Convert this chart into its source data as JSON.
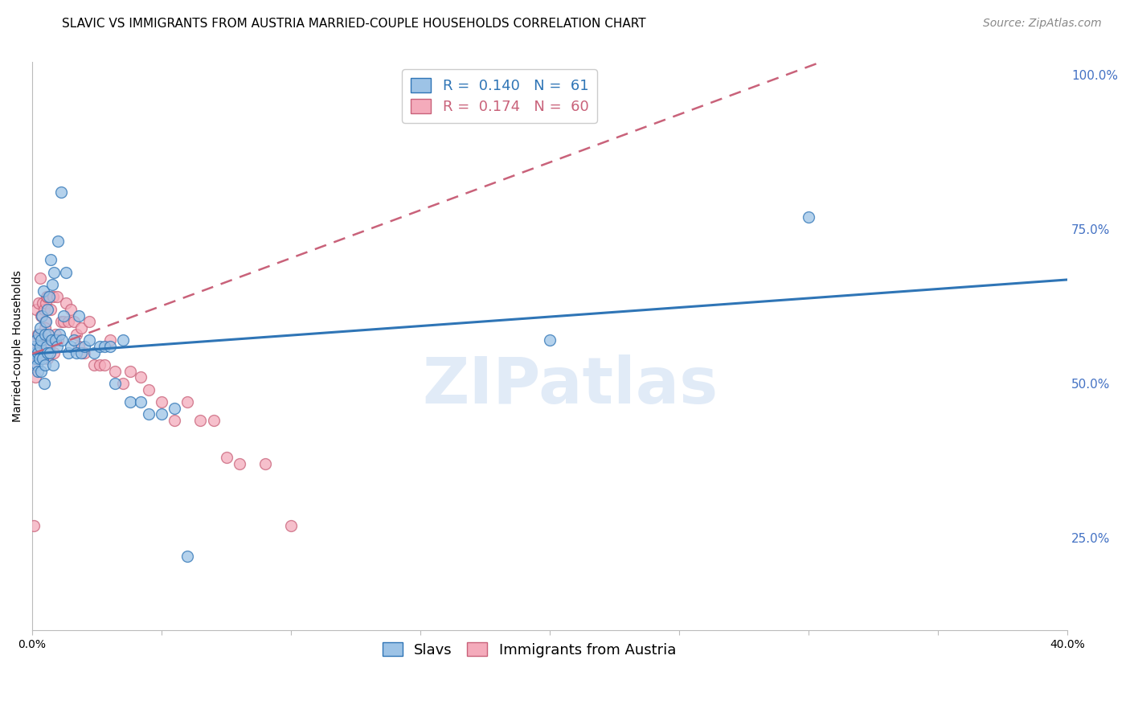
{
  "title": "SLAVIC VS IMMIGRANTS FROM AUSTRIA MARRIED-COUPLE HOUSEHOLDS CORRELATION CHART",
  "source": "Source: ZipAtlas.com",
  "ylabel": "Married-couple Households",
  "xlabel": "",
  "xlim": [
    0.0,
    0.4
  ],
  "ylim": [
    0.1,
    1.02
  ],
  "xticks": [
    0.0,
    0.05,
    0.1,
    0.15,
    0.2,
    0.25,
    0.3,
    0.35,
    0.4
  ],
  "xticklabels": [
    "0.0%",
    "",
    "",
    "",
    "",
    "",
    "",
    "",
    "40.0%"
  ],
  "yticks_right": [
    0.25,
    0.5,
    0.75,
    1.0
  ],
  "ytick_labels_right": [
    "25.0%",
    "50.0%",
    "75.0%",
    "100.0%"
  ],
  "background_color": "#ffffff",
  "grid_color": "#cccccc",
  "blue_color": "#9DC3E6",
  "pink_color": "#F4ABBB",
  "blue_line_color": "#2F75B6",
  "pink_line_color": "#C9627A",
  "R_blue": 0.14,
  "N_blue": 61,
  "R_pink": 0.174,
  "N_pink": 60,
  "legend_label_blue": "Slavs",
  "legend_label_pink": "Immigrants from Austria",
  "blue_intercept": 0.548,
  "blue_slope": 0.3,
  "pink_intercept": 0.548,
  "pink_slope": 1.55,
  "slavs_x": [
    0.0008,
    0.001,
    0.0012,
    0.0015,
    0.0018,
    0.002,
    0.0022,
    0.0025,
    0.0028,
    0.003,
    0.003,
    0.0033,
    0.0035,
    0.0038,
    0.004,
    0.0042,
    0.0045,
    0.0048,
    0.005,
    0.0052,
    0.0055,
    0.0058,
    0.006,
    0.0062,
    0.0065,
    0.0068,
    0.007,
    0.0075,
    0.0078,
    0.008,
    0.0085,
    0.009,
    0.0095,
    0.01,
    0.0105,
    0.011,
    0.0115,
    0.012,
    0.013,
    0.014,
    0.015,
    0.016,
    0.017,
    0.018,
    0.019,
    0.02,
    0.022,
    0.024,
    0.026,
    0.028,
    0.03,
    0.032,
    0.035,
    0.038,
    0.042,
    0.045,
    0.05,
    0.055,
    0.06,
    0.2,
    0.3
  ],
  "slavs_y": [
    0.55,
    0.56,
    0.54,
    0.57,
    0.53,
    0.55,
    0.52,
    0.58,
    0.54,
    0.56,
    0.59,
    0.52,
    0.57,
    0.61,
    0.54,
    0.65,
    0.5,
    0.58,
    0.53,
    0.6,
    0.56,
    0.62,
    0.55,
    0.58,
    0.64,
    0.55,
    0.7,
    0.57,
    0.66,
    0.53,
    0.68,
    0.57,
    0.56,
    0.73,
    0.58,
    0.81,
    0.57,
    0.61,
    0.68,
    0.55,
    0.56,
    0.57,
    0.55,
    0.61,
    0.55,
    0.56,
    0.57,
    0.55,
    0.56,
    0.56,
    0.56,
    0.5,
    0.57,
    0.47,
    0.47,
    0.45,
    0.45,
    0.46,
    0.22,
    0.57,
    0.77
  ],
  "austria_x": [
    0.0005,
    0.0008,
    0.001,
    0.0012,
    0.0015,
    0.0018,
    0.002,
    0.0022,
    0.0025,
    0.0028,
    0.003,
    0.0033,
    0.0035,
    0.0038,
    0.004,
    0.0042,
    0.0045,
    0.0048,
    0.005,
    0.0052,
    0.0055,
    0.0058,
    0.006,
    0.0065,
    0.007,
    0.0075,
    0.008,
    0.0085,
    0.009,
    0.0095,
    0.01,
    0.011,
    0.012,
    0.013,
    0.014,
    0.015,
    0.016,
    0.017,
    0.018,
    0.019,
    0.02,
    0.022,
    0.024,
    0.026,
    0.028,
    0.03,
    0.032,
    0.035,
    0.038,
    0.042,
    0.045,
    0.05,
    0.055,
    0.06,
    0.065,
    0.07,
    0.075,
    0.08,
    0.09,
    0.1
  ],
  "austria_y": [
    0.27,
    0.56,
    0.53,
    0.51,
    0.62,
    0.57,
    0.58,
    0.55,
    0.63,
    0.56,
    0.67,
    0.58,
    0.61,
    0.55,
    0.63,
    0.57,
    0.62,
    0.6,
    0.59,
    0.63,
    0.64,
    0.54,
    0.64,
    0.56,
    0.62,
    0.57,
    0.64,
    0.55,
    0.58,
    0.64,
    0.57,
    0.6,
    0.6,
    0.63,
    0.6,
    0.62,
    0.6,
    0.58,
    0.56,
    0.59,
    0.55,
    0.6,
    0.53,
    0.53,
    0.53,
    0.57,
    0.52,
    0.5,
    0.52,
    0.51,
    0.49,
    0.47,
    0.44,
    0.47,
    0.44,
    0.44,
    0.38,
    0.37,
    0.37,
    0.27
  ],
  "watermark_text": "ZIPatlas",
  "title_fontsize": 11,
  "axis_label_fontsize": 10,
  "tick_fontsize": 10,
  "legend_fontsize": 13,
  "source_fontsize": 10,
  "right_tick_color": "#4472C4",
  "bottom_tick_color": "#000000"
}
